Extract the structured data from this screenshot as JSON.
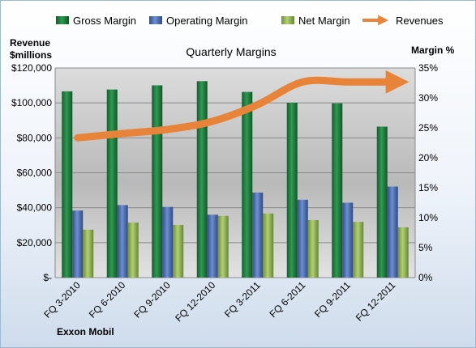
{
  "chart_data": {
    "type": "bar",
    "title": "Quarterly Margins",
    "company": "Exxon Mobil",
    "categories": [
      "FQ 3-2010",
      "FQ 6-2010",
      "FQ 9-2010",
      "FQ 12-2010",
      "FQ 3-2011",
      "FQ 6-2011",
      "FQ 9-2011",
      "FQ 12-2011"
    ],
    "series": [
      {
        "name": "Gross Margin",
        "axis": "right",
        "color": "#1e7b3c",
        "values": [
          31.1,
          31.4,
          32.1,
          32.8,
          31.0,
          29.2,
          29.1,
          25.2
        ]
      },
      {
        "name": "Operating Margin",
        "axis": "right",
        "color": "#4a6fb5",
        "values": [
          11.2,
          12.1,
          11.8,
          10.5,
          14.2,
          13.0,
          12.5,
          15.2
        ]
      },
      {
        "name": "Net Margin",
        "axis": "right",
        "color": "#8fb553",
        "values": [
          8.0,
          9.2,
          8.8,
          10.3,
          10.7,
          9.6,
          9.3,
          8.4
        ]
      },
      {
        "name": "Revenues",
        "axis": "left",
        "type": "line",
        "color": "#e8833a",
        "values": [
          80000,
          82500,
          84800,
          89500,
          99000,
          112000,
          112000,
          112000
        ]
      }
    ],
    "ylabel_left": "Revenue\n$millions",
    "ylabel_right": "Margin %",
    "yticks_left": [
      "$120,000",
      "$100,000",
      "$80,000",
      "$60,000",
      "$40,000",
      "$20,000",
      "$-"
    ],
    "yticks_right": [
      "35%",
      "30%",
      "25%",
      "20%",
      "15%",
      "10%",
      "5%",
      "0%"
    ],
    "ylim_left": [
      0,
      120000
    ],
    "ylim_right": [
      0,
      35
    ],
    "grid": true,
    "legend_position": "top"
  }
}
